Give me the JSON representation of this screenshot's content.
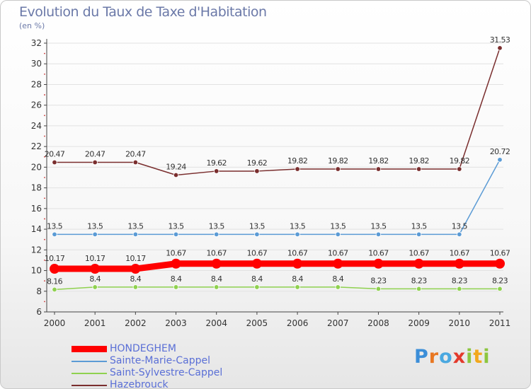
{
  "chart_data": {
    "type": "line",
    "title": "Evolution du Taux de Taxe d'Habitation",
    "unit_label": "(en %)",
    "categories": [
      "2000",
      "2001",
      "2002",
      "2003",
      "2004",
      "2005",
      "2006",
      "2007",
      "2008",
      "2009",
      "2010",
      "2011"
    ],
    "ylim": [
      6,
      32
    ],
    "yticks": [
      "6",
      "8",
      "10",
      "12",
      "14",
      "16",
      "18",
      "20",
      "22",
      "24",
      "26",
      "28",
      "30",
      "32"
    ],
    "legend_position": "bottom-left",
    "series": [
      {
        "name": "Hazebrouck",
        "color": "#7a2e2e",
        "values": [
          20.47,
          20.47,
          20.47,
          19.24,
          19.62,
          19.62,
          19.82,
          19.82,
          19.82,
          19.82,
          19.82,
          31.53
        ],
        "labels": [
          "20.47",
          "20.47",
          "20.47",
          "19.24",
          "19.62",
          "19.62",
          "19.82",
          "19.82",
          "19.82",
          "19.82",
          "19.82",
          "31.53"
        ]
      },
      {
        "name": "Sainte-Marie-Cappel",
        "color": "#5b9bd5",
        "values": [
          13.5,
          13.5,
          13.5,
          13.5,
          13.5,
          13.5,
          13.5,
          13.5,
          13.5,
          13.5,
          13.5,
          20.72
        ],
        "labels": [
          "13.5",
          "13.5",
          "13.5",
          "13.5",
          "13.5",
          "13.5",
          "13.5",
          "13.5",
          "13.5",
          "13.5",
          "13.5",
          "20.72"
        ]
      },
      {
        "name": "Saint-Sylvestre-Cappel",
        "color": "#8fd14f",
        "values": [
          8.16,
          8.4,
          8.4,
          8.4,
          8.4,
          8.4,
          8.4,
          8.4,
          8.23,
          8.23,
          8.23,
          8.23
        ],
        "labels": [
          "8.16",
          "8.4",
          "8.4",
          "8.4",
          "8.4",
          "8.4",
          "8.4",
          "8.4",
          "8.23",
          "8.23",
          "8.23",
          "8.23"
        ]
      },
      {
        "name": "HONDEGHEM",
        "color": "#ff0000",
        "values": [
          10.17,
          10.17,
          10.17,
          10.67,
          10.67,
          10.67,
          10.67,
          10.67,
          10.67,
          10.67,
          10.67,
          10.67
        ],
        "labels": [
          "10.17",
          "10.17",
          "10.17",
          "10.67",
          "10.67",
          "10.67",
          "10.67",
          "10.67",
          "10.67",
          "10.67",
          "10.67",
          "10.67"
        ]
      }
    ],
    "legend": [
      {
        "name": "HONDEGHEM",
        "color": "#ff0000"
      },
      {
        "name": "Sainte-Marie-Cappel",
        "color": "#5b9bd5"
      },
      {
        "name": "Saint-Sylvestre-Cappel",
        "color": "#8fd14f"
      },
      {
        "name": "Hazebrouck",
        "color": "#7a2e2e"
      }
    ]
  },
  "logo": {
    "p": "P",
    "r": "r",
    "o": "o",
    "x": "x",
    "i": "i",
    "t": "t",
    "i2": "i"
  }
}
